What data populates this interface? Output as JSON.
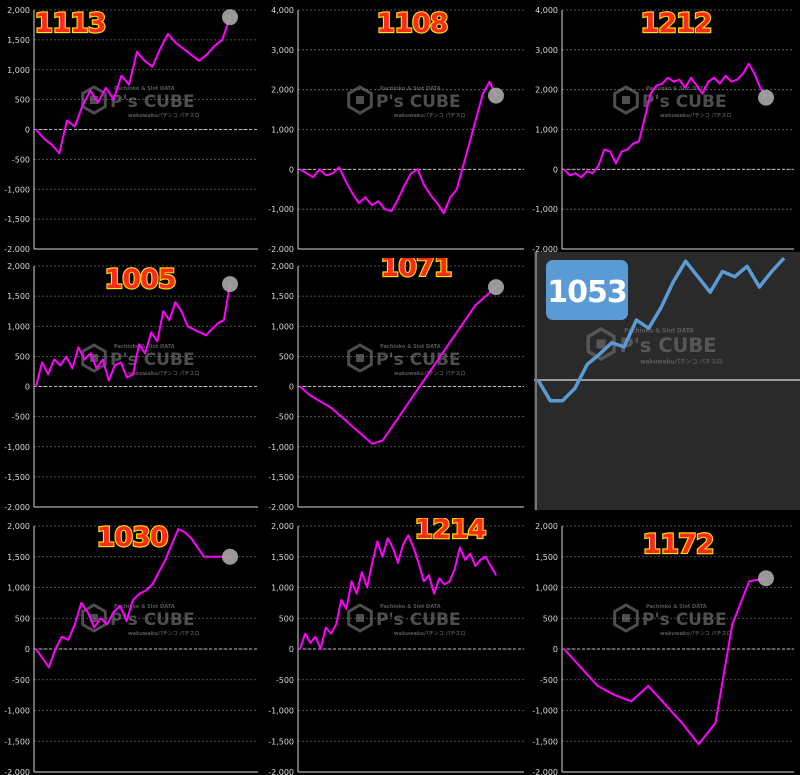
{
  "watermark": {
    "brand": "P's CUBE",
    "line1": "Pachinko & Slot DATA",
    "line2": "wakuwakuパチンコ パチスロ"
  },
  "colors": {
    "background": "#000000",
    "line": "#ff00ff",
    "grid": "#6a6a6a",
    "label_fill": "#ff2a1a",
    "label_stroke": "#ffe600",
    "badge_bg": "#5b9bd5",
    "zoom_line": "#5b9bd5"
  },
  "chart_data": [
    {
      "type": "line",
      "title": "1113",
      "ylim": [
        -2000,
        2000
      ],
      "yticks": [
        "2,000",
        "1,500",
        "1,000",
        "500",
        "0",
        "-500",
        "-1,000",
        "-1,500",
        "-2,000"
      ],
      "x": [
        0,
        1,
        2,
        3,
        4,
        5,
        6,
        7,
        8,
        9,
        10,
        11,
        12,
        13,
        14,
        15,
        16,
        17,
        18,
        19,
        20,
        21,
        22,
        23,
        24,
        25
      ],
      "y": [
        0,
        -150,
        -250,
        -400,
        150,
        50,
        400,
        650,
        450,
        700,
        500,
        900,
        750,
        1300,
        1150,
        1050,
        1350,
        1600,
        1450,
        1350,
        1250,
        1150,
        1250,
        1400,
        1500,
        1880
      ],
      "end_marker": true
    },
    {
      "type": "line",
      "title": "1108",
      "ylim": [
        -2000,
        4000
      ],
      "yticks": [
        "4,000",
        "3,000",
        "2,000",
        "1,000",
        "0",
        "-1,000",
        "-2,000"
      ],
      "x": [
        0,
        1,
        2,
        3,
        4,
        5,
        6,
        7,
        8,
        9,
        10,
        11,
        12,
        13,
        14,
        15,
        16,
        17,
        18,
        19,
        20,
        21,
        22,
        23,
        24,
        25,
        26,
        27,
        28,
        29,
        30
      ],
      "y": [
        0,
        -100,
        -200,
        0,
        -150,
        -100,
        50,
        -300,
        -600,
        -850,
        -700,
        -900,
        -800,
        -1000,
        -1050,
        -750,
        -400,
        -100,
        0,
        -400,
        -650,
        -850,
        -1100,
        -700,
        -500,
        100,
        700,
        1300,
        1900,
        2200,
        1850
      ],
      "end_marker": true
    },
    {
      "type": "line",
      "title": "1212",
      "ylim": [
        -2000,
        4000
      ],
      "yticks": [
        "4,000",
        "3,000",
        "2,000",
        "1,000",
        "0",
        "-1,000",
        "-2,000"
      ],
      "x": [
        0,
        1,
        2,
        3,
        4,
        5,
        6,
        7,
        8,
        9,
        10,
        11,
        12,
        13,
        14,
        15,
        16,
        17,
        18,
        19,
        20,
        21,
        22,
        23,
        24,
        25,
        26,
        27,
        28,
        29,
        30,
        31,
        32,
        33,
        34,
        35
      ],
      "y": [
        0,
        -150,
        -100,
        -200,
        -50,
        -100,
        100,
        500,
        450,
        150,
        450,
        500,
        650,
        700,
        1300,
        1900,
        2100,
        2150,
        2300,
        2200,
        2250,
        2050,
        2300,
        2100,
        1900,
        2200,
        2300,
        2150,
        2350,
        2200,
        2250,
        2400,
        2650,
        2400,
        2050,
        1800
      ],
      "end_marker": true
    },
    {
      "type": "line",
      "title": "1005",
      "ylim": [
        -2000,
        2000
      ],
      "yticks": [
        "2,000",
        "1,500",
        "1,000",
        "500",
        "0",
        "-500",
        "-1,000",
        "-1,500",
        "-2,000"
      ],
      "x": [
        0,
        1,
        2,
        3,
        4,
        5,
        6,
        7,
        8,
        9,
        10,
        11,
        12,
        13,
        14,
        15,
        16,
        17,
        18,
        19,
        20,
        21,
        22,
        23,
        24,
        25,
        26,
        27,
        28,
        29,
        30,
        31,
        32
      ],
      "y": [
        0,
        400,
        200,
        450,
        350,
        500,
        300,
        650,
        450,
        550,
        300,
        450,
        100,
        350,
        400,
        150,
        200,
        700,
        550,
        900,
        750,
        1250,
        1100,
        1400,
        1250,
        1000,
        950,
        900,
        850,
        950,
        1050,
        1100,
        1700
      ],
      "end_marker": true
    },
    {
      "type": "line",
      "title": "1071",
      "ylim": [
        -2000,
        2000
      ],
      "yticks": [
        "2,000",
        "1,500",
        "1,000",
        "500",
        "0",
        "-500",
        "-1,000",
        "-1,500",
        "-2,000"
      ],
      "x": [
        0,
        1,
        2,
        3,
        4,
        5,
        6,
        7,
        8,
        9,
        10,
        11,
        12,
        13,
        14,
        15,
        16,
        17,
        18,
        19
      ],
      "y": [
        0,
        -150,
        -250,
        -350,
        -500,
        -650,
        -800,
        -950,
        -900,
        -650,
        -400,
        -150,
        100,
        350,
        600,
        850,
        1100,
        1350,
        1500,
        1650
      ],
      "end_marker": true
    },
    {
      "type": "line",
      "title": "1053",
      "style": "zoomed",
      "x": [
        0,
        1,
        2,
        3,
        4,
        5,
        6,
        7,
        8,
        9,
        10,
        11,
        12,
        13,
        14,
        15,
        16,
        17,
        18,
        19,
        20
      ],
      "y": [
        0,
        -2,
        -2,
        -0.8,
        1.5,
        2.5,
        3.6,
        3.2,
        5.8,
        5.0,
        7.0,
        9.5,
        11.5,
        10.0,
        8.5,
        10.5,
        10.0,
        11.0,
        9.0,
        10.5,
        11.8
      ],
      "end_marker": false
    },
    {
      "type": "line",
      "title": "1030",
      "ylim": [
        -2000,
        2000
      ],
      "yticks": [
        "2,000",
        "1,500",
        "1,000",
        "500",
        "0",
        "-500",
        "-1,000",
        "-1,500",
        "-2,000"
      ],
      "x": [
        0,
        1,
        2,
        3,
        4,
        5,
        6,
        7,
        8,
        9,
        10,
        11,
        12,
        13,
        14,
        15,
        16,
        17,
        18,
        19,
        20,
        21,
        22,
        23,
        24,
        25,
        26,
        27,
        28,
        29,
        30
      ],
      "y": [
        0,
        -150,
        -300,
        0,
        200,
        150,
        400,
        750,
        600,
        350,
        500,
        400,
        600,
        700,
        450,
        800,
        900,
        950,
        1050,
        1250,
        1450,
        1700,
        1950,
        1900,
        1800,
        1650,
        1500,
        1500,
        1500,
        1500,
        1500
      ],
      "end_marker": true
    },
    {
      "type": "line",
      "title": "1214",
      "ylim": [
        -2000,
        2000
      ],
      "yticks": [
        "2,000",
        "1,500",
        "1,000",
        "500",
        "0",
        "-500",
        "-1,000",
        "-1,500",
        "-2,000"
      ],
      "x": [
        0,
        1,
        2,
        3,
        4,
        5,
        6,
        7,
        8,
        9,
        10,
        11,
        12,
        13,
        14,
        15,
        16,
        17,
        18,
        19,
        20,
        21,
        22,
        23,
        24,
        25,
        26,
        27,
        28,
        29,
        30,
        31,
        32,
        33,
        34,
        35,
        36,
        37,
        38
      ],
      "y": [
        0,
        250,
        100,
        200,
        0,
        350,
        250,
        400,
        800,
        650,
        1100,
        900,
        1250,
        1000,
        1400,
        1750,
        1500,
        1800,
        1650,
        1400,
        1700,
        1850,
        1650,
        1400,
        1100,
        1200,
        900,
        1150,
        1050,
        1100,
        1300,
        1650,
        1450,
        1550,
        1350,
        1450,
        1500,
        1350,
        1200
      ],
      "end_marker": false
    },
    {
      "type": "line",
      "title": "1172",
      "ylim": [
        -2000,
        2000
      ],
      "yticks": [
        "2,000",
        "1,500",
        "1,000",
        "500",
        "0",
        "-500",
        "-1,000",
        "-1,500",
        "-2,000"
      ],
      "x": [
        0,
        1,
        2,
        3,
        4,
        5,
        6,
        7,
        8,
        9,
        10,
        11,
        12
      ],
      "y": [
        0,
        -300,
        -600,
        -750,
        -850,
        -600,
        -900,
        -1200,
        -1550,
        -1200,
        400,
        1100,
        1150
      ],
      "end_marker": true
    }
  ]
}
